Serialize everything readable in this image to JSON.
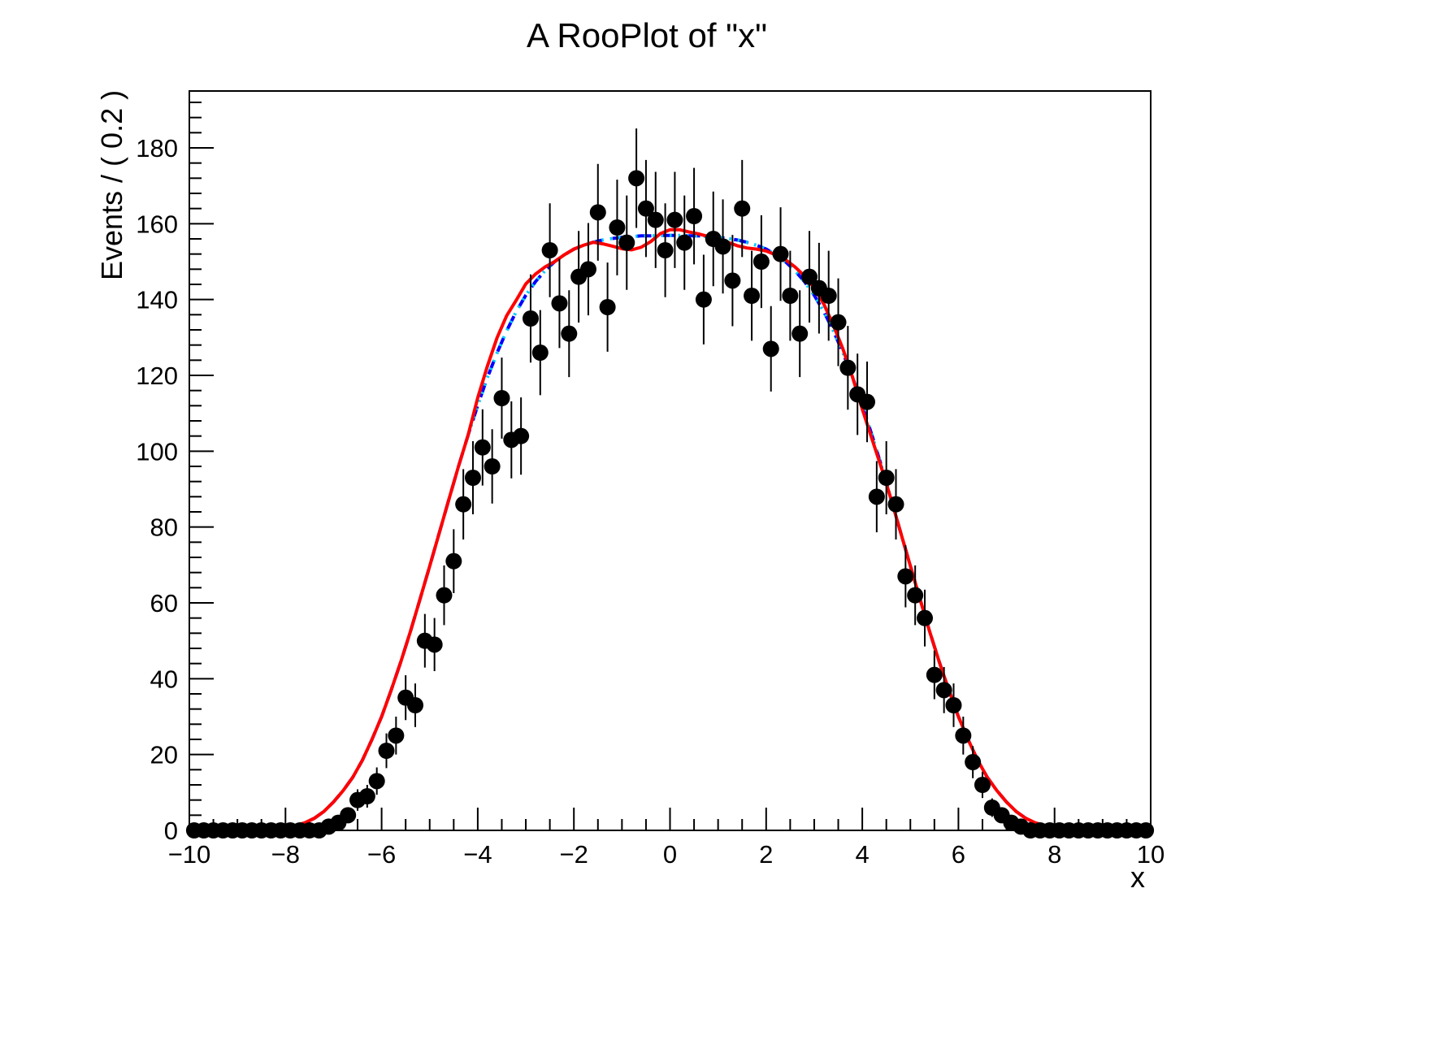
{
  "title": "A RooPlot of \"x\"",
  "chart_data": {
    "type": "line",
    "title": "A RooPlot of \"x\"",
    "xlabel": "x",
    "ylabel": "Events / ( 0.2 )",
    "xlim": [
      -10,
      10
    ],
    "ylim": [
      0,
      195
    ],
    "grid": false,
    "legend": "none",
    "bin_width": 0.2,
    "x_ticks": {
      "values": [
        -10,
        -8,
        -6,
        -4,
        -2,
        0,
        2,
        4,
        6,
        8,
        10
      ],
      "labels": [
        "−10",
        "−8",
        "−6",
        "−4",
        "−2",
        "0",
        "2",
        "4",
        "6",
        "8",
        "10"
      ],
      "major_step": 2,
      "minor_step": 0.5
    },
    "y_ticks": {
      "values": [
        0,
        20,
        40,
        60,
        80,
        100,
        120,
        140,
        160,
        180
      ],
      "labels": [
        "0",
        "20",
        "40",
        "60",
        "80",
        "100",
        "120",
        "140",
        "160",
        "180"
      ],
      "major_step": 20,
      "minor_step": 4
    },
    "data_points": {
      "name": "binned dataset with Poisson error bars",
      "marker": "filled-circle",
      "color": "#000000",
      "errors": "poisson-sqrt",
      "x_start": -9.9,
      "x_step": 0.2,
      "y": [
        0,
        0,
        0,
        0,
        0,
        0,
        0,
        0,
        0,
        0,
        0,
        0,
        0,
        0,
        1,
        2,
        4,
        8,
        9,
        13,
        21,
        25,
        35,
        33,
        50,
        49,
        62,
        71,
        86,
        93,
        101,
        96,
        114,
        103,
        104,
        135,
        126,
        153,
        139,
        131,
        146,
        148,
        163,
        138,
        159,
        155,
        172,
        164,
        161,
        153,
        161,
        155,
        162,
        140,
        156,
        154,
        145,
        164,
        141,
        150,
        127,
        152,
        141,
        131,
        146,
        143,
        141,
        134,
        122,
        115,
        113,
        88,
        93,
        86,
        67,
        62,
        56,
        41,
        37,
        33,
        25,
        18,
        12,
        6,
        4,
        2,
        1,
        0,
        0,
        0,
        0,
        0,
        0,
        0,
        0,
        0,
        0,
        0,
        0,
        0
      ]
    },
    "model_x": {
      "start": -10,
      "step": 0.2,
      "count": 101
    },
    "smooth_y": [
      0,
      0,
      0,
      0,
      0,
      0,
      0,
      0.1,
      0.2,
      0.4,
      0.7,
      1.2,
      2.0,
      3.2,
      5.0,
      7.5,
      10.5,
      14.0,
      18.5,
      24.0,
      30.0,
      37.0,
      44.5,
      52.5,
      61.0,
      69.7,
      78.5,
      87.3,
      96.0,
      104.3,
      112.1,
      119.4,
      125.9,
      131.7,
      136.8,
      141.1,
      144.7,
      147.6,
      150.0,
      151.8,
      153.3,
      154.3,
      155.1,
      155.7,
      156.1,
      156.4,
      156.6,
      156.8,
      156.8,
      156.9,
      156.9,
      156.9,
      156.8,
      156.8,
      156.6,
      156.4,
      156.1,
      155.7,
      155.1,
      154.3,
      153.3,
      151.8,
      150.0,
      147.6,
      144.7,
      141.1,
      136.8,
      131.7,
      125.9,
      119.4,
      112.1,
      104.3,
      96.0,
      87.3,
      78.5,
      69.7,
      61.0,
      52.5,
      44.5,
      37.0,
      30.0,
      24.0,
      18.5,
      14.0,
      10.5,
      7.5,
      5.0,
      3.2,
      2.0,
      1.2,
      0.7,
      0.4,
      0.2,
      0.1,
      0,
      0,
      0,
      0,
      0,
      0,
      0
    ],
    "red_y": [
      0,
      0,
      0,
      0,
      0,
      0,
      0,
      0.1,
      0.2,
      0.4,
      0.7,
      1.2,
      2.0,
      3.2,
      5.0,
      7.5,
      10.5,
      14.0,
      18.5,
      24.0,
      30.0,
      37.0,
      44.5,
      52.5,
      61.0,
      69.7,
      78.5,
      87.3,
      96.0,
      104.3,
      114.1,
      122.4,
      129.9,
      135.7,
      139.8,
      144.1,
      146.7,
      148.6,
      150.0,
      151.8,
      153.3,
      154.3,
      155.1,
      154.7,
      154.1,
      153.4,
      153.1,
      153.8,
      155.3,
      157.4,
      158.4,
      158.4,
      157.8,
      157.3,
      156.6,
      155.9,
      155.1,
      154.2,
      153.6,
      153.3,
      152.8,
      151.8,
      150.5,
      148.6,
      146.2,
      143.1,
      138.8,
      133.2,
      126.9,
      119.4,
      111.1,
      103.3,
      95.5,
      87.3,
      78.5,
      69.7,
      61.0,
      52.5,
      44.5,
      37.0,
      30.0,
      24.0,
      18.5,
      14.0,
      10.5,
      7.5,
      5.0,
      3.2,
      2.0,
      1.2,
      0.7,
      0.4,
      0.2,
      0.1,
      0,
      0,
      0,
      0,
      0,
      0,
      0
    ],
    "curves": [
      {
        "name": "model pdf (dashed blue)",
        "color": "#0000ff",
        "style": "dashed",
        "width": 4,
        "y_key": "smooth_y"
      },
      {
        "name": "model pdf (dotted cyan)",
        "color": "#00ccff",
        "style": "dotted",
        "width": 4,
        "y_key": "smooth_y"
      },
      {
        "name": "model pdf (solid red)",
        "color": "#ff0000",
        "style": "solid",
        "width": 4,
        "y_key": "red_y"
      }
    ]
  }
}
